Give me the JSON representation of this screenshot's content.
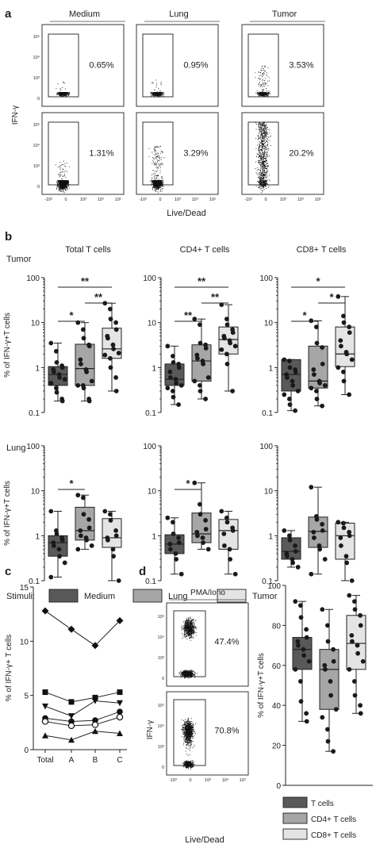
{
  "panel_letters": [
    "a",
    "b",
    "c",
    "d"
  ],
  "colors": {
    "medium": "#595959",
    "lung": "#a6a6a6",
    "tumor": "#e4e4e4",
    "tcells": "#595959",
    "cd4": "#a6a6a6",
    "cd8": "#e4e4e4",
    "dots": "#1a1a1a"
  },
  "chart_data": [
    {
      "id": "a",
      "type": "scatter",
      "ylabel": "IFN-γ",
      "xlabel": "Live/Dead",
      "columns": [
        "Medium",
        "Lung",
        "Tumor"
      ],
      "tick_labels_y": [
        "0",
        "10³",
        "10⁴",
        "10⁵"
      ],
      "tick_labels_x": [
        "-10³",
        "0",
        "10³",
        "10⁴",
        "10⁵"
      ],
      "gate_percentages": [
        [
          "0.65%",
          "0.95%",
          "3.53%"
        ],
        [
          "1.31%",
          "3.29%",
          "20.2%"
        ]
      ]
    },
    {
      "id": "b",
      "type": "box",
      "column_titles": [
        "Total T cells",
        "CD4+ T cells",
        "CD8+ T cells"
      ],
      "row_titles": [
        "Tumor",
        "Lung"
      ],
      "ylabel": "% of IFN-γ+T cells",
      "yscale": "log",
      "ylim": [
        0.1,
        100
      ],
      "tick_labels_y": [
        "0.1",
        "1",
        "10",
        "100"
      ],
      "categories": [
        "Medium",
        "Lung",
        "Tumor"
      ],
      "legend": {
        "title": "Stimuli:",
        "entries": [
          "Medium",
          "Lung",
          "Tumor"
        ]
      },
      "significance": [
        [
          [
            {
              "a": 0,
              "b": 1,
              "label": "*"
            },
            {
              "a": 0,
              "b": 2,
              "label": "**"
            },
            {
              "a": 1,
              "b": 2,
              "label": "**"
            }
          ],
          [
            {
              "a": 0,
              "b": 1,
              "label": "**"
            },
            {
              "a": 0,
              "b": 2,
              "label": "**"
            },
            {
              "a": 1,
              "b": 2,
              "label": "**"
            }
          ],
          [
            {
              "a": 0,
              "b": 1,
              "label": "*"
            },
            {
              "a": 0,
              "b": 2,
              "label": "*"
            },
            {
              "a": 1,
              "b": 2,
              "label": "*"
            }
          ]
        ],
        [
          [
            {
              "a": 0,
              "b": 1,
              "label": "*"
            }
          ],
          [
            {
              "a": 0,
              "b": 1,
              "label": "*"
            }
          ],
          []
        ]
      ],
      "groups": [
        [
          {
            "min": 0.18,
            "q1": 0.4,
            "median": 0.7,
            "q3": 1.05,
            "max": 3.5,
            "points": [
              3.5,
              2.3,
              1.3,
              1.1,
              1.0,
              0.9,
              0.8,
              0.7,
              0.6,
              0.55,
              0.45,
              0.35,
              0.28,
              0.2,
              0.18
            ]
          },
          {
            "min": 0.18,
            "q1": 0.4,
            "median": 0.95,
            "q3": 3.3,
            "max": 10,
            "points": [
              10,
              7,
              4.5,
              3.2,
              3.0,
              1.5,
              1.2,
              0.9,
              0.8,
              0.5,
              0.4,
              0.4,
              0.35,
              0.2,
              0.18
            ]
          },
          {
            "min": 0.3,
            "q1": 1.6,
            "median": 2.6,
            "q3": 7.5,
            "max": 27,
            "points": [
              27,
              20,
              12,
              10,
              7,
              5,
              4.5,
              3.2,
              2.6,
              2.1,
              1.9,
              1.6,
              1.0,
              0.6,
              0.3
            ]
          }
        ],
        [
          {
            "min": 0.15,
            "q1": 0.4,
            "median": 0.55,
            "q3": 1.2,
            "max": 3.0,
            "points": [
              3.0,
              1.8,
              1.3,
              1.2,
              1.0,
              0.8,
              0.6,
              0.55,
              0.45,
              0.4,
              0.35,
              0.3,
              0.22,
              0.15
            ]
          },
          {
            "min": 0.2,
            "q1": 0.5,
            "median": 1.4,
            "q3": 3.2,
            "max": 12,
            "points": [
              12,
              9,
              3.5,
              3.2,
              2.7,
              1.9,
              1.6,
              1.4,
              1.2,
              0.6,
              0.5,
              0.4,
              0.3,
              0.2
            ]
          },
          {
            "min": 0.3,
            "q1": 2.0,
            "median": 4.2,
            "q3": 8,
            "max": 25,
            "points": [
              25,
              12,
              9,
              7,
              6,
              5,
              4.5,
              4.0,
              3.5,
              3.0,
              2.5,
              2.0,
              1.2,
              0.3
            ]
          }
        ],
        [
          {
            "min": 0.11,
            "q1": 0.3,
            "median": 0.7,
            "q3": 1.5,
            "max": 1.5,
            "points": [
              1.5,
              1.4,
              1.0,
              0.9,
              0.8,
              0.7,
              0.6,
              0.5,
              0.4,
              0.3,
              0.25,
              0.2,
              0.15,
              0.11
            ]
          },
          {
            "min": 0.14,
            "q1": 0.35,
            "median": 0.5,
            "q3": 3,
            "max": 11,
            "points": [
              11,
              8,
              3.5,
              2.8,
              1.2,
              0.9,
              0.7,
              0.5,
              0.45,
              0.4,
              0.35,
              0.3,
              0.2,
              0.14
            ]
          },
          {
            "min": 0.25,
            "q1": 1.05,
            "median": 2.0,
            "q3": 8,
            "max": 38,
            "points": [
              38,
              14,
              10,
              8,
              6,
              4,
              3,
              2.2,
              2.0,
              1.5,
              1.0,
              0.8,
              0.5,
              0.25
            ]
          }
        ]
      ],
      "groups_lung": [
        [
          {
            "min": 0.12,
            "q1": 0.35,
            "median": 0.7,
            "q3": 1.0,
            "max": 3.5,
            "points": [
              3.5,
              1.3,
              1.1,
              0.9,
              0.8,
              0.7,
              0.6,
              0.5,
              0.35,
              0.25,
              0.12
            ]
          },
          {
            "min": 0.5,
            "q1": 0.8,
            "median": 1.3,
            "q3": 4.3,
            "max": 8,
            "points": [
              8,
              7,
              3.0,
              2.3,
              1.5,
              1.3,
              1.0,
              0.9,
              0.8,
              0.6,
              0.5
            ]
          },
          {
            "min": 0.1,
            "q1": 0.55,
            "median": 0.9,
            "q3": 2.4,
            "max": 3.5,
            "points": [
              3.5,
              3.0,
              2.2,
              1.3,
              1.0,
              0.9,
              0.8,
              0.5,
              0.35,
              0.1
            ]
          }
        ],
        [
          {
            "min": 0.14,
            "q1": 0.4,
            "median": 0.65,
            "q3": 1.05,
            "max": 2.5,
            "points": [
              2.5,
              2.0,
              1.1,
              0.9,
              0.7,
              0.65,
              0.5,
              0.4,
              0.3,
              0.14
            ]
          },
          {
            "min": 0.5,
            "q1": 0.7,
            "median": 1.1,
            "q3": 3.2,
            "max": 15,
            "points": [
              15,
              5,
              3.0,
              2.2,
              1.4,
              1.2,
              1.0,
              0.9,
              0.7,
              0.5
            ]
          },
          {
            "min": 0.14,
            "q1": 0.5,
            "median": 1.3,
            "q3": 2.3,
            "max": 3.5,
            "points": [
              3.5,
              2.5,
              2.0,
              1.5,
              1.3,
              1.1,
              0.6,
              0.5,
              0.3,
              0.14
            ]
          }
        ],
        [
          {
            "min": 0.2,
            "q1": 0.3,
            "median": 0.45,
            "q3": 0.9,
            "max": 1.3,
            "points": [
              1.3,
              1.0,
              0.8,
              0.6,
              0.45,
              0.4,
              0.35,
              0.3,
              0.25,
              0.2
            ]
          },
          {
            "min": 0.14,
            "q1": 0.55,
            "median": 1.25,
            "q3": 2.6,
            "max": 12,
            "points": [
              12,
              2.7,
              2.3,
              1.8,
              1.3,
              1.2,
              0.9,
              0.6,
              0.5,
              0.3,
              0.14
            ]
          },
          {
            "min": 0.1,
            "q1": 0.3,
            "median": 1.0,
            "q3": 1.9,
            "max": 2.0,
            "points": [
              2.0,
              1.9,
              1.5,
              1.2,
              1.0,
              0.9,
              0.6,
              0.35,
              0.25,
              0.1
            ]
          }
        ]
      ]
    },
    {
      "id": "c",
      "type": "line",
      "ylabel": "% of IFN-γ+ T cells",
      "categories": [
        "Total",
        "A",
        "B",
        "C"
      ],
      "ylim": [
        0,
        15
      ],
      "tick_labels_y": [
        "0",
        "5",
        "10",
        "15"
      ],
      "series": [
        {
          "marker": "diamond",
          "values": [
            12.8,
            11.1,
            9.6,
            11.9
          ]
        },
        {
          "marker": "square",
          "values": [
            5.3,
            4.4,
            4.8,
            5.3
          ]
        },
        {
          "marker": "triangle-down",
          "values": [
            4.0,
            3.1,
            4.5,
            4.3
          ]
        },
        {
          "marker": "circle-filled",
          "values": [
            2.9,
            2.6,
            2.7,
            3.5
          ]
        },
        {
          "marker": "circle-open",
          "values": [
            2.6,
            2.2,
            2.3,
            3.0
          ]
        },
        {
          "marker": "triangle-up",
          "values": [
            1.3,
            0.9,
            1.7,
            1.5
          ]
        }
      ]
    },
    {
      "id": "d",
      "type": "box",
      "flow_title": "PMA/Iono",
      "flow_ylabel": "IFN-γ",
      "flow_xlabel": "Live/Dead",
      "flow_tick_labels_y": [
        "0",
        "10³",
        "10⁴",
        "10⁵"
      ],
      "flow_tick_labels_x": [
        "-10³",
        "0",
        "10³",
        "10⁴",
        "10⁵"
      ],
      "gate_percentages": [
        "47.4%",
        "70.8%"
      ],
      "ylabel": "% of IFN-γ+T cells",
      "ylim": [
        0,
        100
      ],
      "tick_labels_y": [
        "0",
        "20",
        "40",
        "60",
        "80",
        "100"
      ],
      "legend": [
        "T cells",
        "CD4+ T cells",
        "CD8+ T cells"
      ],
      "groups": [
        {
          "min": 32,
          "q1": 58,
          "median": 68,
          "q3": 74,
          "max": 92,
          "points": [
            92,
            90,
            84,
            78,
            74,
            72,
            70,
            68,
            65,
            62,
            58,
            52,
            42,
            36,
            32
          ]
        },
        {
          "min": 17,
          "q1": 38,
          "median": 58,
          "q3": 68,
          "max": 88,
          "points": [
            88,
            80,
            72,
            68,
            62,
            60,
            58,
            52,
            45,
            38,
            34,
            28,
            22,
            17
          ]
        },
        {
          "min": 36,
          "q1": 58,
          "median": 71,
          "q3": 85,
          "max": 95,
          "points": [
            95,
            92,
            88,
            85,
            80,
            75,
            72,
            70,
            66,
            62,
            58,
            52,
            45,
            40,
            36
          ]
        }
      ]
    }
  ]
}
